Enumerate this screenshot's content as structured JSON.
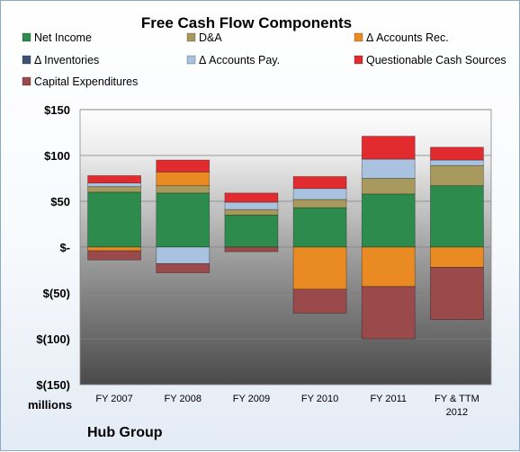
{
  "chart_data": {
    "type": "bar",
    "stacked": true,
    "title": "Free Cash Flow Components",
    "units_label": "millions",
    "source_label": "Hub Group",
    "categories": [
      [
        "FY 2007"
      ],
      [
        "FY 2008"
      ],
      [
        "FY 2009"
      ],
      [
        "FY 2010"
      ],
      [
        "FY 2011"
      ],
      [
        "FY & TTM",
        "2012"
      ]
    ],
    "ylim": [
      -150,
      150
    ],
    "yticks": [
      150,
      100,
      50,
      0,
      -50,
      -100,
      -150
    ],
    "ytick_labels": [
      "$150",
      "$100",
      "$50",
      "$-",
      "$(50)",
      "$(100)",
      "$(150)"
    ],
    "legend_position": "top",
    "grid": true,
    "series": [
      {
        "name": "Net Income",
        "color": "#2e8b4e",
        "values": [
          60,
          59,
          35,
          43,
          58,
          67
        ]
      },
      {
        "name": "D&A",
        "color": "#a89a5c",
        "values": [
          6,
          8,
          6,
          9,
          17,
          22
        ]
      },
      {
        "name": "Δ Accounts Rec.",
        "color": "#ea8a23",
        "values": [
          -4,
          15,
          0,
          -46,
          -43,
          -22
        ]
      },
      {
        "name": "Δ Inventories",
        "color": "#3a5377",
        "values": [
          0,
          0,
          0,
          0,
          0,
          0
        ]
      },
      {
        "name": "Δ Accounts Pay.",
        "color": "#a8c2df",
        "values": [
          4,
          -18,
          8,
          12,
          21,
          6
        ]
      },
      {
        "name": "Questionable Cash Sources",
        "color": "#e12b2f",
        "values": [
          8,
          13,
          10,
          13,
          25,
          14
        ]
      },
      {
        "name": "Capital Expenditures",
        "color": "#9b4a4c",
        "values": [
          -10,
          -10,
          -5,
          -26,
          -57,
          -57
        ]
      }
    ]
  }
}
